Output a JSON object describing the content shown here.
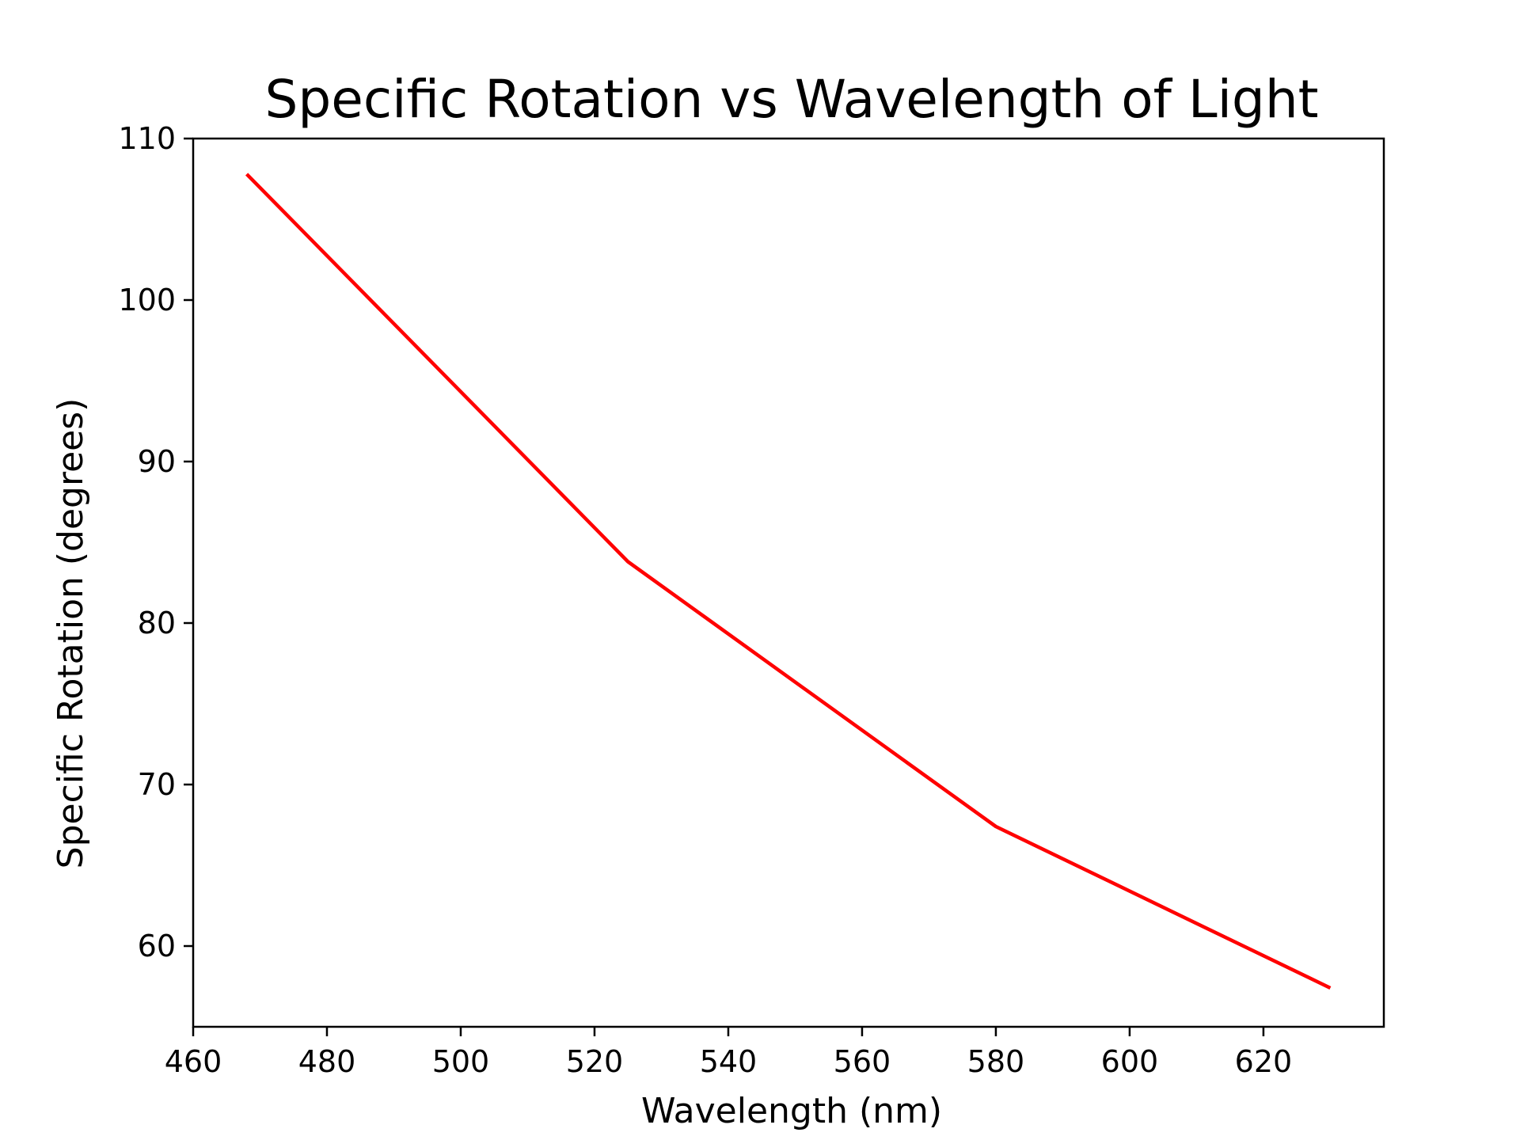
{
  "chart_data": {
    "type": "line",
    "title": "Specific Rotation vs Wavelength of Light",
    "xlabel": "Wavelength (nm)",
    "ylabel": "Specific Rotation (degrees)",
    "xlim": [
      460,
      638
    ],
    "ylim": [
      55,
      110
    ],
    "x_ticks": [
      460,
      480,
      500,
      520,
      540,
      560,
      580,
      600,
      620
    ],
    "y_ticks": [
      60,
      70,
      80,
      90,
      100,
      110
    ],
    "grid": false,
    "legend": "none",
    "series": [
      {
        "color": "#ff0000",
        "x": [
          468,
          525,
          580,
          630
        ],
        "y": [
          107.8,
          83.8,
          67.4,
          57.4
        ]
      }
    ]
  }
}
